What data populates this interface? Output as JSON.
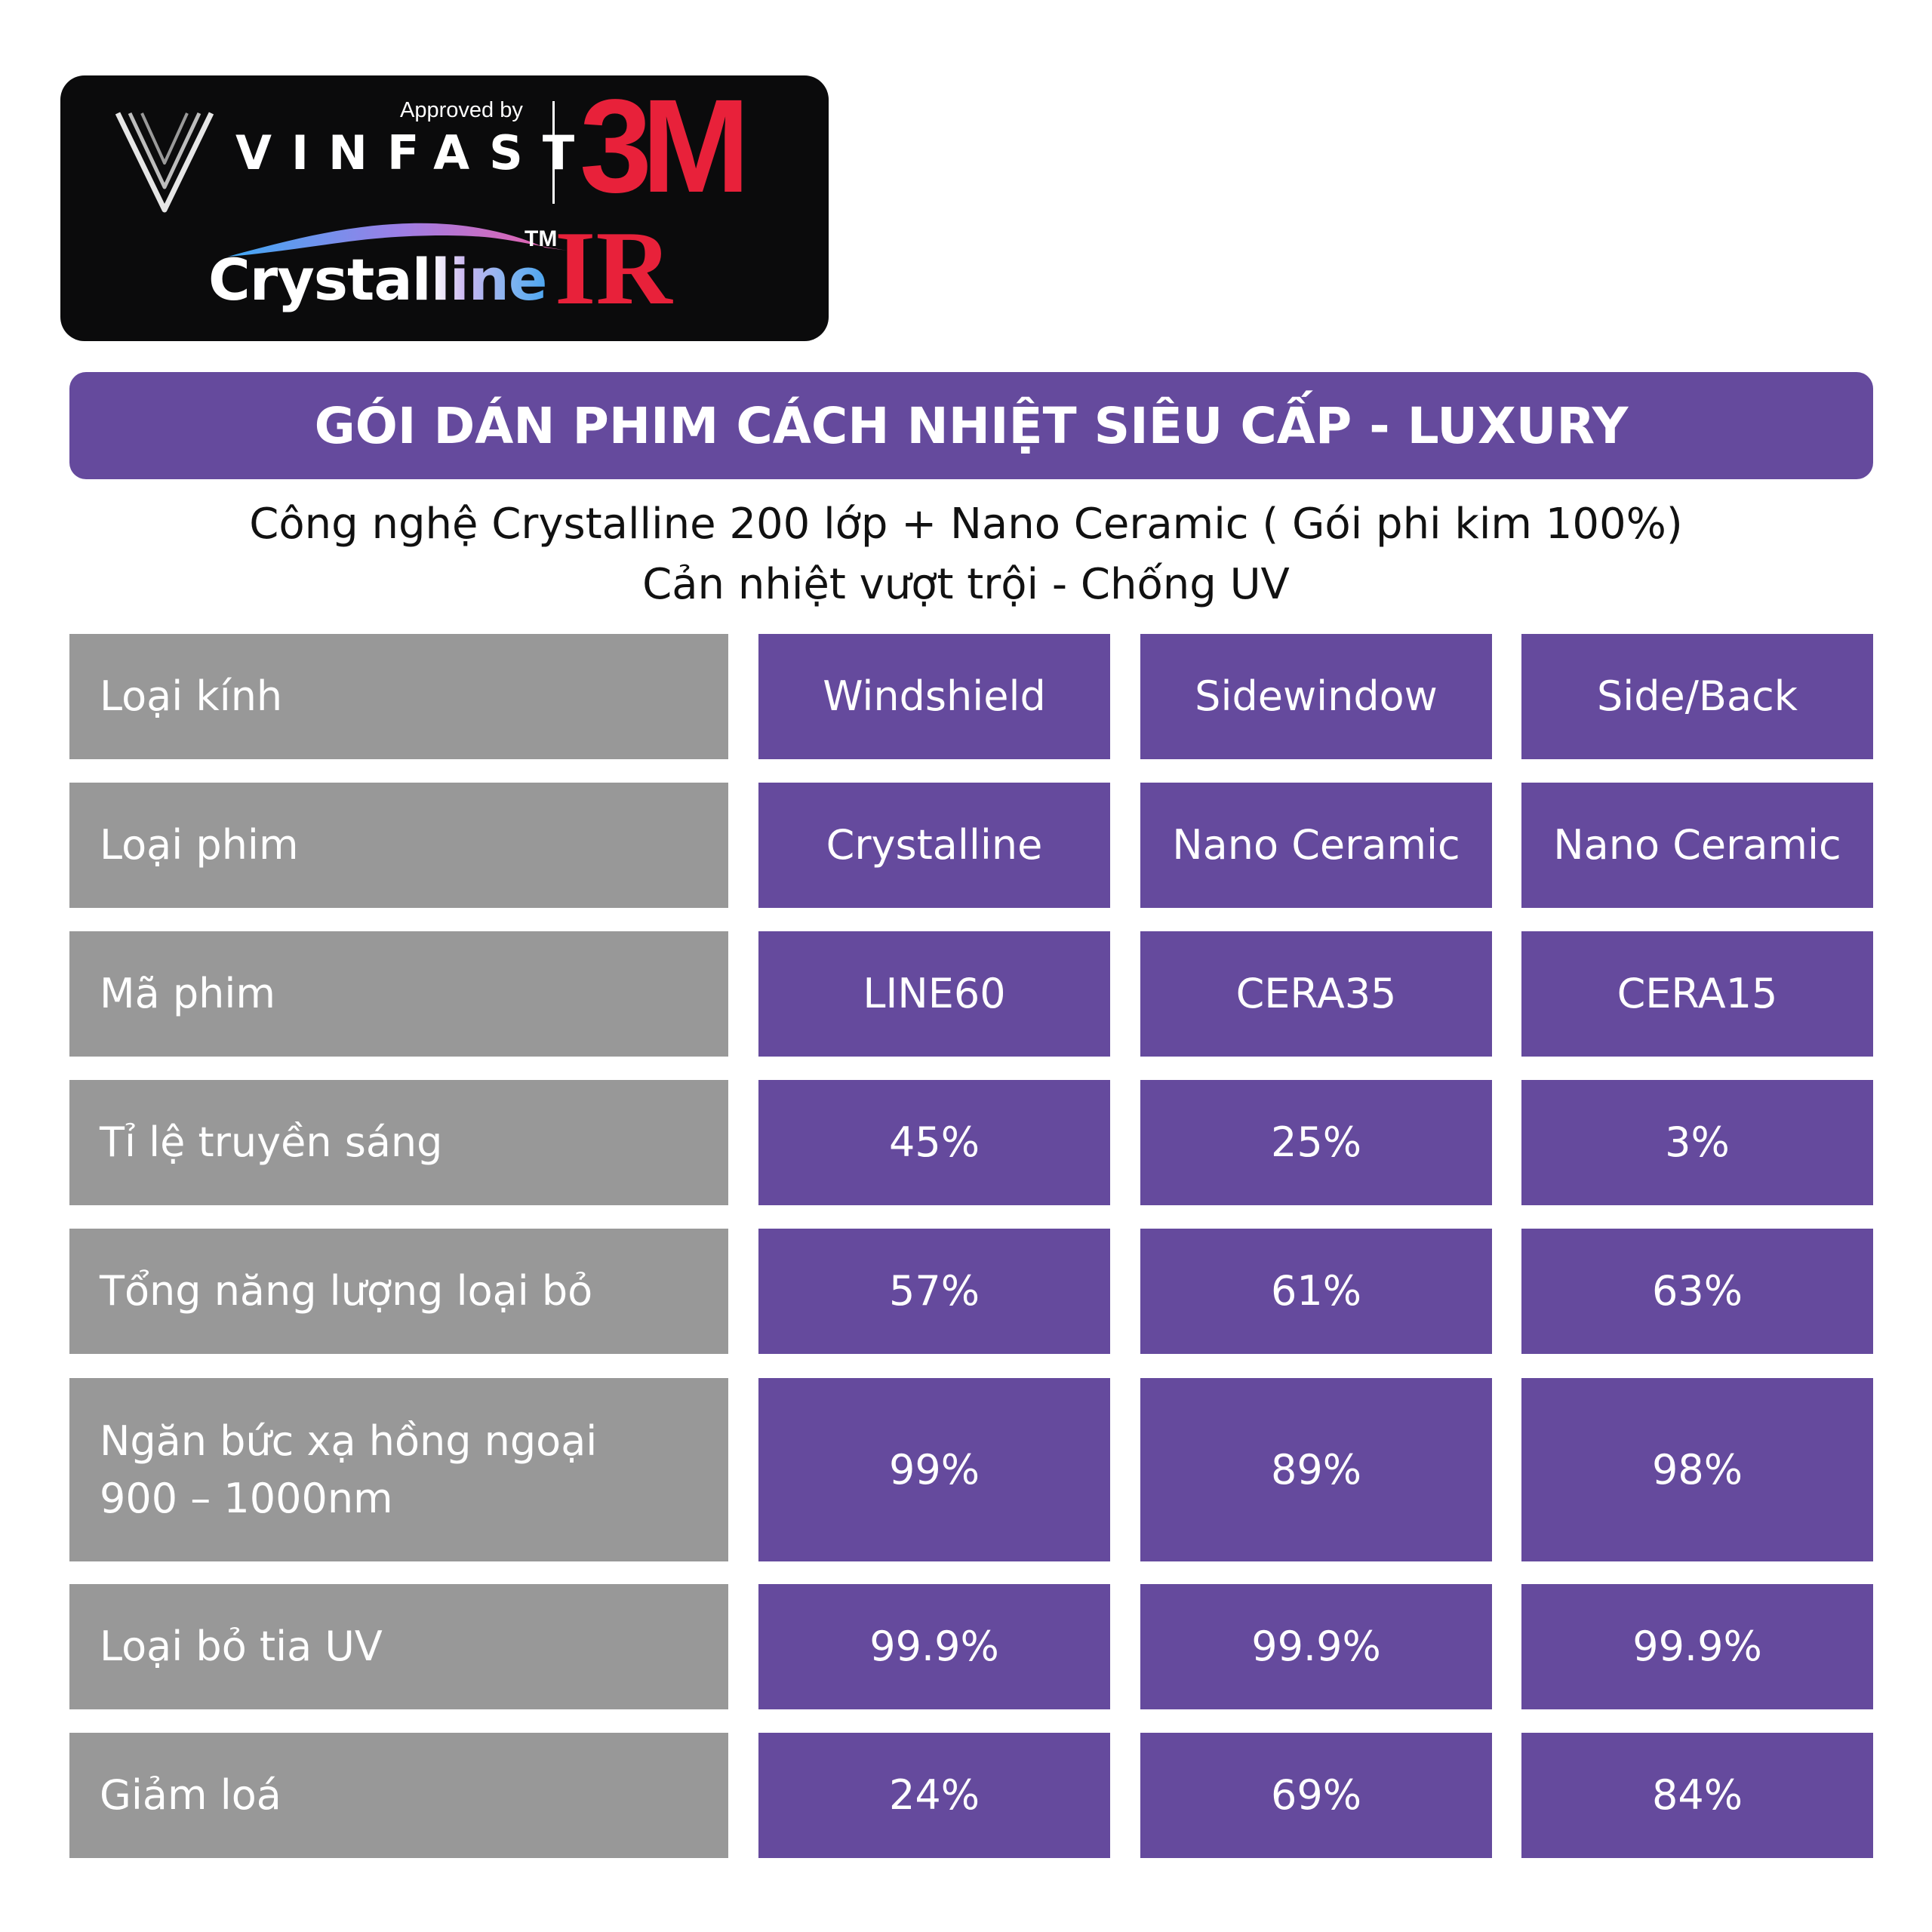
{
  "logo": {
    "approved_by": "Approved by",
    "vinfast": "VINFAST",
    "brand_3m": "3M",
    "crystalline_main": "Crystal",
    "crystalline_grad": "line",
    "tm": "TM",
    "ir": "IR"
  },
  "title": "GÓI DÁN PHIM CÁCH NHIỆT SIÊU CẤP - LUXURY",
  "subtitle_line1": "Công nghệ Crystalline 200 lớp + Nano Ceramic ( Gói phi kim 100%)",
  "subtitle_line2": "Cản nhiệt vượt trội - Chống UV",
  "colors": {
    "purple": "#654a9d",
    "gray": "#989898",
    "red_3m": "#e8213a",
    "badge": "#0b0b0c"
  },
  "table": {
    "rows": [
      {
        "label": "Loại kính",
        "values": [
          "Windshield",
          "Sidewindow",
          "Side/Back"
        ]
      },
      {
        "label": "Loại phim",
        "values": [
          "Crystalline",
          "Nano Ceramic",
          "Nano Ceramic"
        ]
      },
      {
        "label": "Mã phim",
        "values": [
          "LINE60",
          "CERA35",
          "CERA15"
        ]
      },
      {
        "label": "Tỉ lệ truyền sáng",
        "values": [
          "45%",
          "25%",
          "3%"
        ]
      },
      {
        "label": "Tổng năng lượng loại bỏ",
        "values": [
          "57%",
          "61%",
          "63%"
        ]
      },
      {
        "label": "Ngăn bức xạ hồng ngoại\n900 – 1000nm",
        "values": [
          "99%",
          "89%",
          "98%"
        ]
      },
      {
        "label": "Loại bỏ tia UV",
        "values": [
          "99.9%",
          "99.9%",
          "99.9%"
        ]
      },
      {
        "label": "Giảm loá",
        "values": [
          "24%",
          "69%",
          "84%"
        ]
      }
    ]
  }
}
